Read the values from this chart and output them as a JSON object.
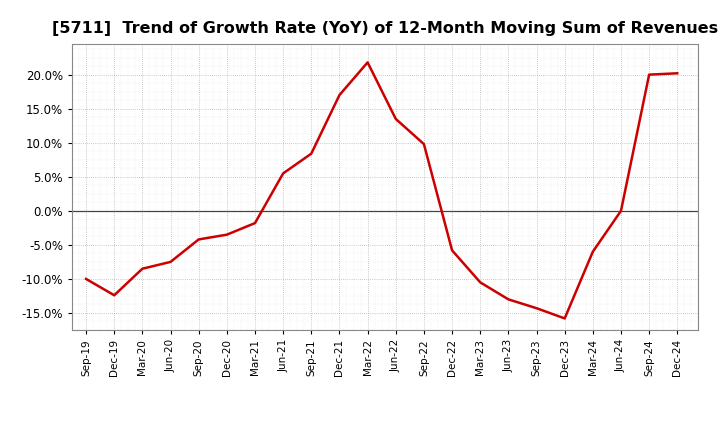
{
  "title": "[5711]  Trend of Growth Rate (YoY) of 12-Month Moving Sum of Revenues",
  "title_fontsize": 11.5,
  "line_color": "#cc0000",
  "line_width": 1.8,
  "background_color": "#ffffff",
  "plot_bg_color": "#ffffff",
  "grid_color": "#999999",
  "ylim": [
    -0.175,
    0.245
  ],
  "yticks": [
    -0.15,
    -0.1,
    -0.05,
    0.0,
    0.05,
    0.1,
    0.15,
    0.2
  ],
  "dates": [
    "Sep-19",
    "Dec-19",
    "Mar-20",
    "Jun-20",
    "Sep-20",
    "Dec-20",
    "Mar-21",
    "Jun-21",
    "Sep-21",
    "Dec-21",
    "Mar-22",
    "Jun-22",
    "Sep-22",
    "Dec-22",
    "Mar-23",
    "Jun-23",
    "Sep-23",
    "Dec-23",
    "Mar-24",
    "Jun-24",
    "Sep-24",
    "Dec-24"
  ],
  "values": [
    -0.1,
    -0.124,
    -0.085,
    -0.075,
    -0.042,
    -0.035,
    -0.018,
    0.055,
    0.084,
    0.17,
    0.218,
    0.135,
    0.098,
    -0.058,
    -0.105,
    -0.13,
    -0.143,
    -0.158,
    -0.06,
    0.0,
    0.2,
    0.202
  ]
}
